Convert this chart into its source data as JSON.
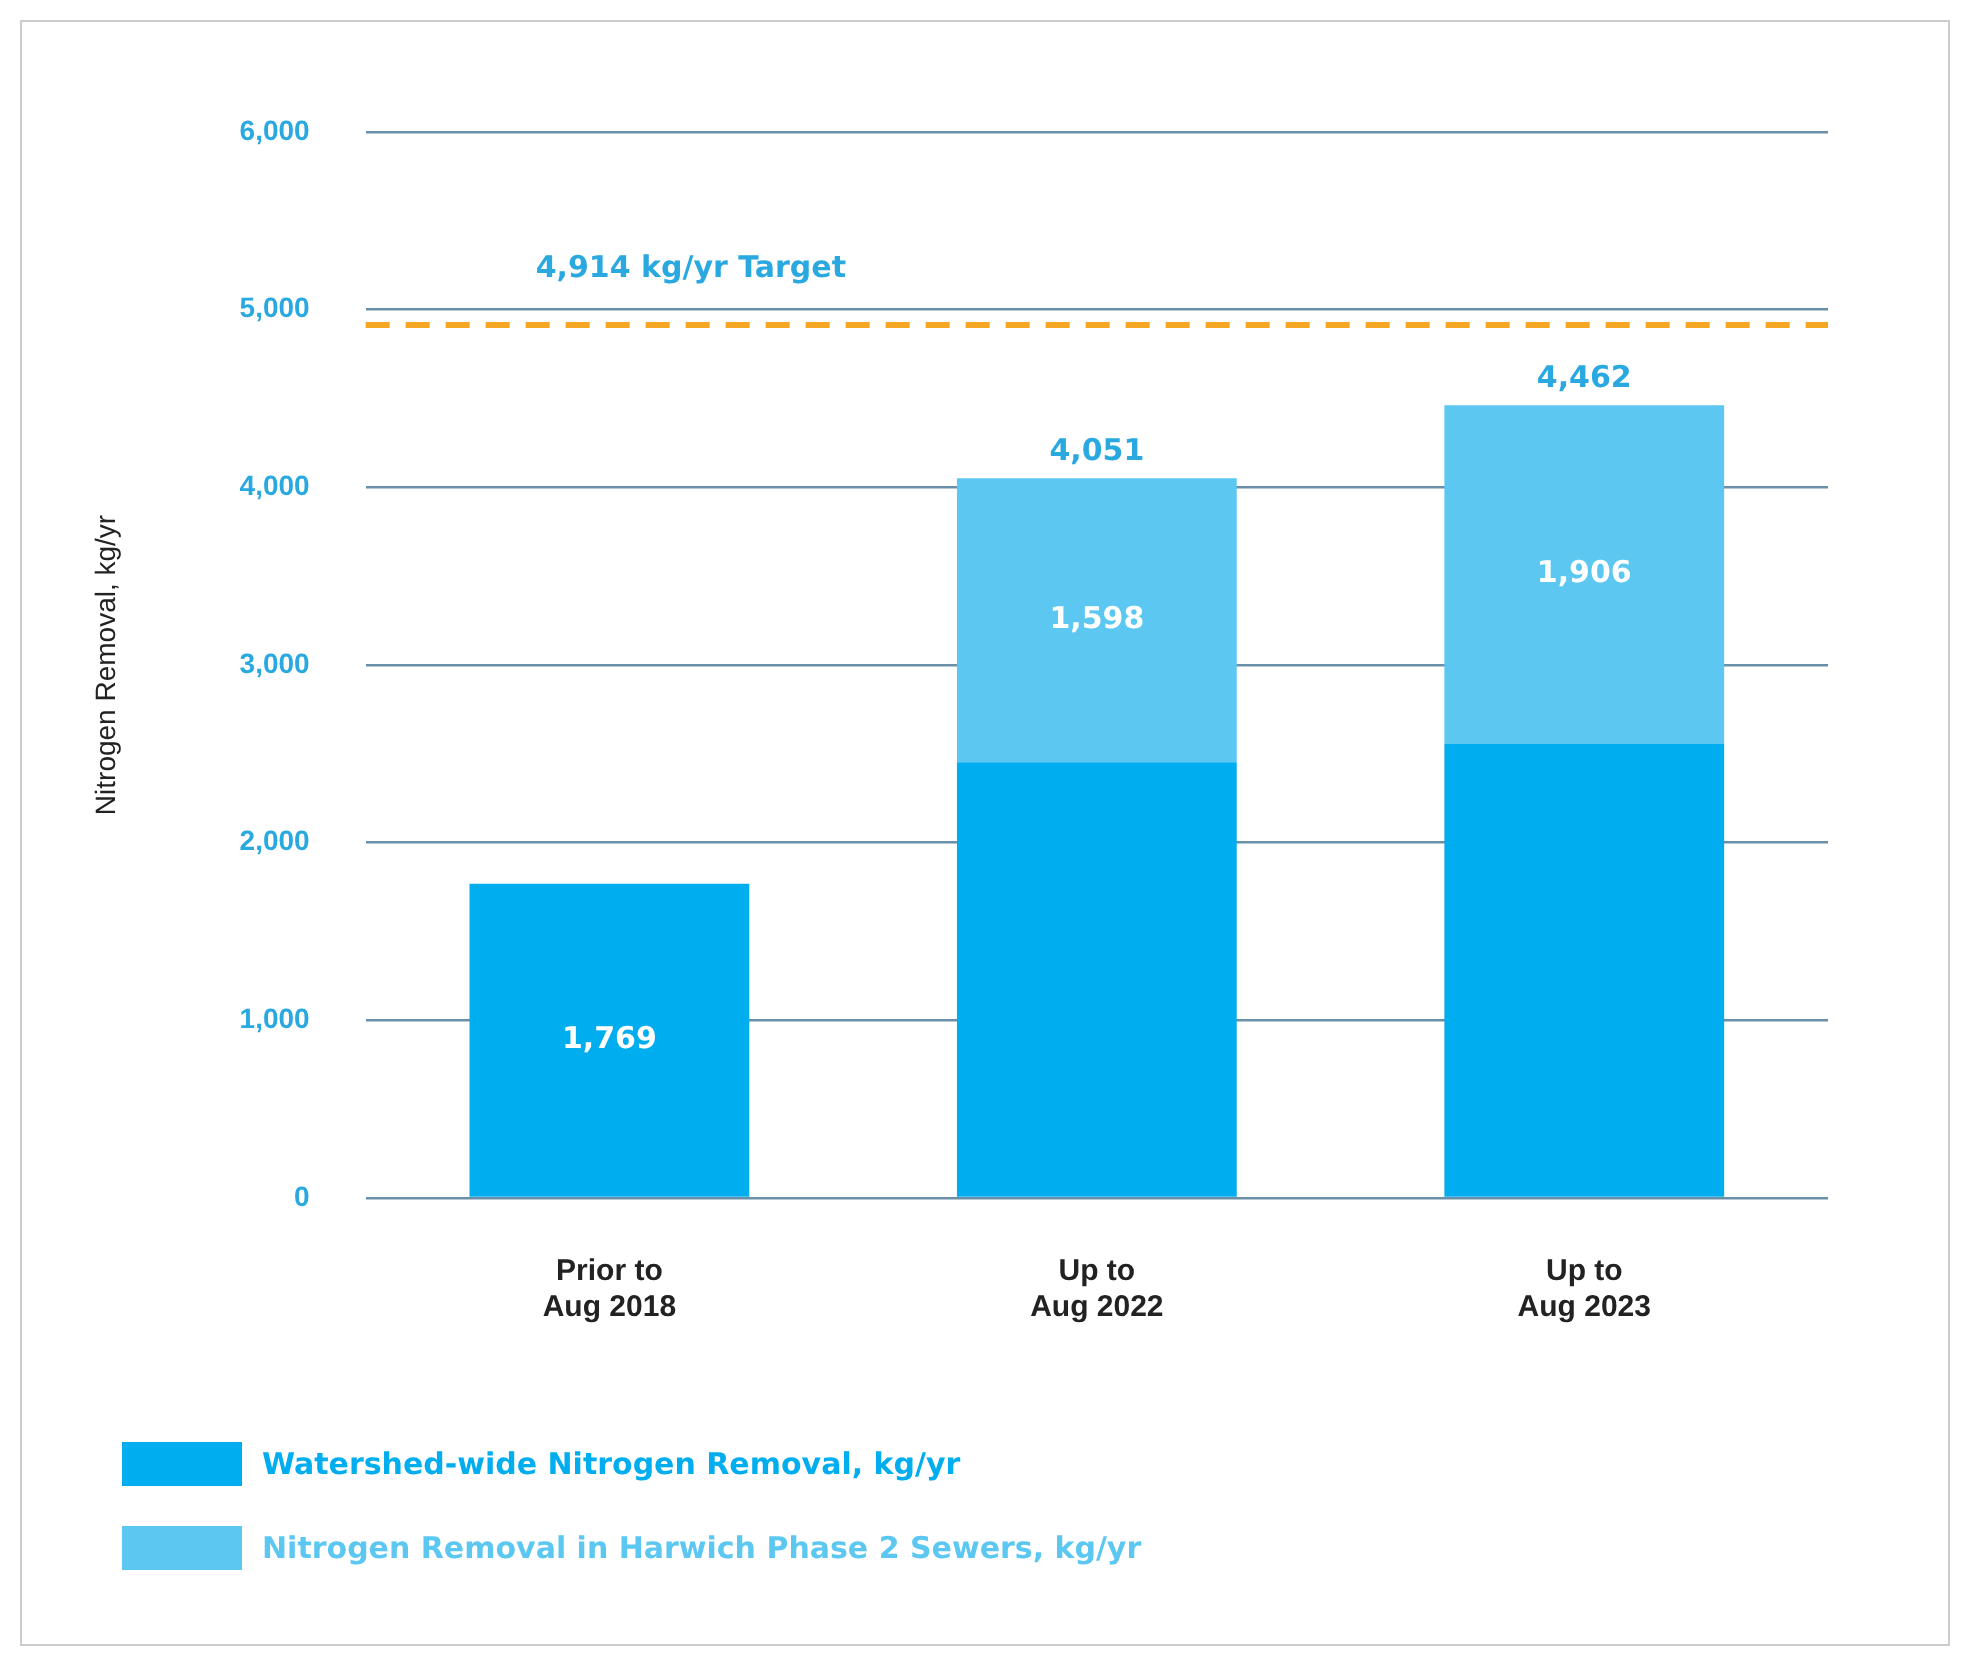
{
  "chart_data": {
    "type": "bar",
    "stacked": true,
    "ylabel": "Nitrogen Removal, kg/yr",
    "categories": [
      "Prior to\nAug 2018",
      "Up to\nAug 2022",
      "Up to\nAug 2023"
    ],
    "series": [
      {
        "name": "Watershed-wide Nitrogen Removal, kg/yr",
        "color": "#00aeef",
        "values": [
          1769,
          2453,
          2556
        ],
        "value_labels": [
          "1,769",
          null,
          null
        ]
      },
      {
        "name": "Nitrogen Removal in Harwich Phase 2 Sewers, kg/yr",
        "color": "#5cc8f2",
        "values": [
          null,
          1598,
          1906
        ],
        "value_labels": [
          null,
          "1,598",
          "1,906"
        ]
      }
    ],
    "totals": [
      null,
      "4,051",
      "4,462"
    ],
    "ylim": [
      0,
      6000
    ],
    "yticks": [
      {
        "value": 0,
        "label": "0"
      },
      {
        "value": 1000,
        "label": "1,000"
      },
      {
        "value": 2000,
        "label": "2,000"
      },
      {
        "value": 3000,
        "label": "3,000"
      },
      {
        "value": 4000,
        "label": "4,000"
      },
      {
        "value": 5000,
        "label": "5,000"
      },
      {
        "value": 6000,
        "label": "6,000"
      }
    ],
    "ref_lines": [
      {
        "axis": "y",
        "value": 4914,
        "label": "4,914 kg/yr Target",
        "color": "#f5a623",
        "line_style": "dashed"
      }
    ],
    "grid": "y",
    "legend": "bottom"
  }
}
